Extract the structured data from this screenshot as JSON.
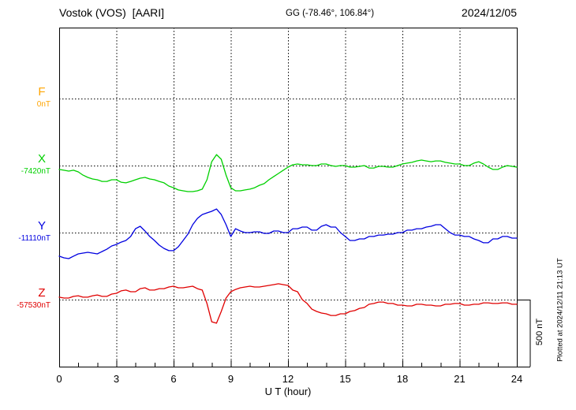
{
  "header": {
    "station": "Vostok (VOS)  [AARI]",
    "coords": "GG (-78.46°, 106.84°)",
    "date": "2024/12/05"
  },
  "axis": {
    "xlabel": "U T (hour)",
    "ticks": [
      "0",
      "3",
      "6",
      "9",
      "12",
      "15",
      "18",
      "21",
      "24"
    ]
  },
  "scalebar": "500 nT",
  "footer_note": "Plotted at 2024/12/11 21:13 UT",
  "components": [
    {
      "label": "F",
      "baseline_label": "0nT",
      "color": "#FFA500"
    },
    {
      "label": "X",
      "baseline_label": "-7420nT",
      "color": "#00D000"
    },
    {
      "label": "Y",
      "baseline_label": "-11110nT",
      "color": "#0000E0"
    },
    {
      "label": "Z",
      "baseline_label": "-57530nT",
      "color": "#E00000"
    }
  ],
  "chart_data": {
    "type": "line",
    "title": "Vostok (VOS) [AARI] magnetogram 2024/12/05",
    "xlabel": "U T (hour)",
    "x_range": [
      0,
      24
    ],
    "x_ticks": [
      0,
      3,
      6,
      9,
      12,
      15,
      18,
      21,
      24
    ],
    "x_start_hour": 0,
    "x_step_hour": 0.25,
    "scale_bar_nT": 500,
    "grid": {
      "vertical_dotted_hours": [
        3,
        6,
        9,
        12,
        15,
        18,
        21
      ],
      "horizontal_dotted": "one dotted baseline per component (F, X, Y, Z), 500 nT apart"
    },
    "legend_position": "left",
    "series": [
      {
        "name": "F",
        "color": "#FFA500",
        "baseline_label": "0nT",
        "values_nT": null,
        "note": "no visible trace (flat at 0 nT baseline)"
      },
      {
        "name": "X",
        "color": "#00D000",
        "baseline_label": "-7420nT",
        "values_nT": [
          -29,
          -35,
          -41,
          -35,
          -47,
          -71,
          -88,
          -100,
          -106,
          -118,
          -118,
          -106,
          -106,
          -124,
          -129,
          -118,
          -106,
          -94,
          -88,
          -100,
          -106,
          -118,
          -129,
          -153,
          -165,
          -182,
          -188,
          -194,
          -194,
          -188,
          -176,
          -106,
          29,
          82,
          47,
          -71,
          -165,
          -188,
          -188,
          -182,
          -176,
          -165,
          -147,
          -135,
          -106,
          -82,
          -59,
          -35,
          -12,
          6,
          12,
          6,
          6,
          0,
          0,
          12,
          12,
          0,
          -6,
          0,
          0,
          -12,
          -12,
          -6,
          0,
          -18,
          -18,
          -6,
          -6,
          -12,
          -12,
          0,
          12,
          18,
          24,
          35,
          41,
          35,
          29,
          35,
          35,
          24,
          18,
          12,
          12,
          0,
          0,
          18,
          29,
          12,
          -12,
          -29,
          -29,
          -12,
          0,
          -6,
          -12
        ]
      },
      {
        "name": "Y",
        "color": "#0000E0",
        "baseline_label": "-11110nT",
        "values_nT": [
          -176,
          -188,
          -194,
          -176,
          -159,
          -153,
          -147,
          -153,
          -159,
          -141,
          -124,
          -100,
          -88,
          -71,
          -59,
          -29,
          29,
          47,
          12,
          -29,
          -59,
          -94,
          -118,
          -135,
          -135,
          -106,
          -59,
          -12,
          59,
          106,
          135,
          147,
          159,
          176,
          135,
          59,
          -29,
          29,
          12,
          0,
          0,
          6,
          6,
          -6,
          -6,
          12,
          12,
          0,
          0,
          29,
          29,
          41,
          41,
          18,
          18,
          47,
          59,
          41,
          41,
          0,
          -29,
          -59,
          -59,
          -47,
          -47,
          -29,
          -29,
          -18,
          -18,
          -12,
          -12,
          0,
          0,
          18,
          18,
          29,
          29,
          41,
          47,
          59,
          59,
          29,
          0,
          -18,
          -18,
          -29,
          -29,
          -47,
          -59,
          -76,
          -76,
          -47,
          -47,
          -29,
          -29,
          -41,
          -41
        ]
      },
      {
        "name": "Z",
        "color": "#E00000",
        "baseline_label": "-57530nT",
        "values_nT": [
          18,
          12,
          12,
          24,
          29,
          18,
          18,
          29,
          35,
          24,
          24,
          41,
          47,
          65,
          71,
          59,
          59,
          82,
          88,
          71,
          71,
          82,
          82,
          94,
          100,
          88,
          88,
          94,
          100,
          82,
          71,
          -29,
          -165,
          -176,
          -88,
          12,
          59,
          76,
          88,
          94,
          100,
          94,
          94,
          100,
          106,
          112,
          118,
          112,
          106,
          71,
          59,
          0,
          -29,
          -71,
          -88,
          -100,
          -106,
          -118,
          -118,
          -106,
          -106,
          -88,
          -82,
          -65,
          -59,
          -35,
          -29,
          -18,
          -18,
          -29,
          -29,
          -41,
          -41,
          -47,
          -47,
          -35,
          -35,
          -41,
          -41,
          -47,
          -47,
          -35,
          -35,
          -29,
          -29,
          -41,
          -41,
          -35,
          -35,
          -24,
          -24,
          -29,
          -29,
          -24,
          -24,
          -35,
          -35
        ]
      }
    ]
  }
}
